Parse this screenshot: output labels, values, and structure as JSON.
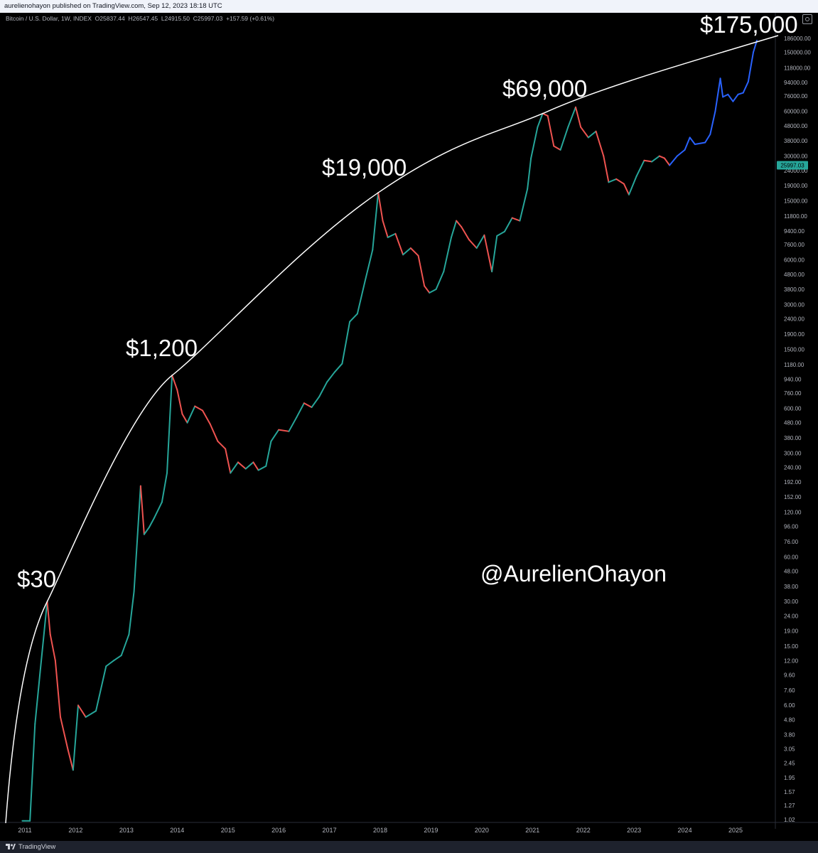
{
  "header": {
    "publish_line": "aurelienohayon published on TradingView.com, Sep 12, 2023 18:18 UTC"
  },
  "legend": {
    "symbol": "Bitcoin / U.S. Dollar, 1W, INDEX",
    "o_label": "O",
    "o_value": "25837.44",
    "h_label": "H",
    "h_value": "26547.45",
    "l_label": "L",
    "l_value": "24915.50",
    "c_label": "C",
    "c_value": "25997.03",
    "change": "+157.59 (+0.61%)"
  },
  "watermark": "@AurelienOhayon",
  "footer": {
    "brand": "TradingView"
  },
  "colors": {
    "up": "#26a69a",
    "down": "#ef5350",
    "projection": "#2962ff",
    "arc": "#ffffff",
    "price_tag": "#26a69a"
  },
  "chart_data": {
    "type": "line",
    "scale": "log",
    "title": "",
    "ylabel": "",
    "xlabel": "",
    "ylim": [
      0.96,
      265000
    ],
    "grid": false,
    "x_ticks": [
      "2011",
      "2012",
      "2013",
      "2014",
      "2015",
      "2016",
      "2017",
      "2018",
      "2019",
      "2020",
      "2021",
      "2022",
      "2023",
      "2024",
      "2025"
    ],
    "y_ticks": [
      "186000.00",
      "150000.00",
      "118000.00",
      "94000.00",
      "76000.00",
      "60000.00",
      "48000.00",
      "38000.00",
      "30000.00",
      "24000.00",
      "19000.00",
      "15000.00",
      "11800.00",
      "9400.00",
      "7600.00",
      "6000.00",
      "4800.00",
      "3800.00",
      "3000.00",
      "2400.00",
      "1900.00",
      "1500.00",
      "1180.00",
      "940.00",
      "760.00",
      "600.00",
      "480.00",
      "380.00",
      "300.00",
      "240.00",
      "192.00",
      "152.00",
      "120.00",
      "96.00",
      "76.00",
      "60.00",
      "48.00",
      "38.00",
      "30.00",
      "24.00",
      "19.00",
      "15.00",
      "12.00",
      "9.60",
      "7.60",
      "6.00",
      "4.80",
      "3.80",
      "3.05",
      "2.45",
      "1.95",
      "1.57",
      "1.27",
      "1.02"
    ],
    "last_price": "25997.03",
    "series": [
      {
        "values": [
          [
            "2010.95",
            1.0
          ],
          [
            "2011.1",
            1.0
          ],
          [
            "2011.2",
            4.5
          ],
          [
            "2011.3",
            10
          ],
          [
            "2011.44",
            30
          ],
          [
            "2011.5",
            18
          ],
          [
            "2011.6",
            12
          ],
          [
            "2011.7",
            5
          ],
          [
            "2011.85",
            3
          ],
          [
            "2011.95",
            2.2
          ],
          [
            "2012.05",
            6
          ],
          [
            "2012.2",
            5
          ],
          [
            "2012.4",
            5.5
          ],
          [
            "2012.6",
            11
          ],
          [
            "2012.75",
            12
          ],
          [
            "2012.9",
            13
          ],
          [
            "2013.05",
            18
          ],
          [
            "2013.15",
            35
          ],
          [
            "2013.28",
            180
          ],
          [
            "2013.35",
            85
          ],
          [
            "2013.45",
            95
          ],
          [
            "2013.55",
            110
          ],
          [
            "2013.7",
            140
          ],
          [
            "2013.8",
            220
          ],
          [
            "2013.9",
            1000
          ],
          [
            "2014.0",
            800
          ],
          [
            "2014.1",
            550
          ],
          [
            "2014.2",
            480
          ],
          [
            "2014.35",
            620
          ],
          [
            "2014.5",
            580
          ],
          [
            "2014.65",
            470
          ],
          [
            "2014.8",
            360
          ],
          [
            "2014.95",
            320
          ],
          [
            "2015.05",
            220
          ],
          [
            "2015.2",
            260
          ],
          [
            "2015.35",
            235
          ],
          [
            "2015.5",
            260
          ],
          [
            "2015.6",
            230
          ],
          [
            "2015.75",
            245
          ],
          [
            "2015.85",
            360
          ],
          [
            "2016.0",
            430
          ],
          [
            "2016.2",
            420
          ],
          [
            "2016.35",
            520
          ],
          [
            "2016.5",
            650
          ],
          [
            "2016.65",
            610
          ],
          [
            "2016.8",
            720
          ],
          [
            "2016.95",
            900
          ],
          [
            "2017.1",
            1050
          ],
          [
            "2017.25",
            1200
          ],
          [
            "2017.4",
            2300
          ],
          [
            "2017.55",
            2600
          ],
          [
            "2017.7",
            4300
          ],
          [
            "2017.85",
            7000
          ],
          [
            "2017.96",
            17000
          ],
          [
            "2018.05",
            11000
          ],
          [
            "2018.15",
            8500
          ],
          [
            "2018.3",
            9000
          ],
          [
            "2018.45",
            6500
          ],
          [
            "2018.6",
            7200
          ],
          [
            "2018.75",
            6400
          ],
          [
            "2018.87",
            4000
          ],
          [
            "2018.97",
            3600
          ],
          [
            "2019.1",
            3800
          ],
          [
            "2019.25",
            5000
          ],
          [
            "2019.4",
            8500
          ],
          [
            "2019.5",
            11000
          ],
          [
            "2019.6",
            10000
          ],
          [
            "2019.75",
            8200
          ],
          [
            "2019.9",
            7200
          ],
          [
            "2020.05",
            8800
          ],
          [
            "2020.2",
            5000
          ],
          [
            "2020.3",
            8700
          ],
          [
            "2020.45",
            9300
          ],
          [
            "2020.6",
            11500
          ],
          [
            "2020.75",
            11000
          ],
          [
            "2020.9",
            18000
          ],
          [
            "2020.97",
            29000
          ],
          [
            "2021.1",
            47000
          ],
          [
            "2021.2",
            58000
          ],
          [
            "2021.3",
            56000
          ],
          [
            "2021.42",
            35000
          ],
          [
            "2021.55",
            33000
          ],
          [
            "2021.7",
            47000
          ],
          [
            "2021.85",
            64000
          ],
          [
            "2021.95",
            47000
          ],
          [
            "2022.1",
            40000
          ],
          [
            "2022.25",
            44000
          ],
          [
            "2022.4",
            30000
          ],
          [
            "2022.5",
            20000
          ],
          [
            "2022.65",
            21000
          ],
          [
            "2022.8",
            19500
          ],
          [
            "2022.9",
            16500
          ],
          [
            "2023.05",
            22000
          ],
          [
            "2023.2",
            28000
          ],
          [
            "2023.35",
            27500
          ],
          [
            "2023.5",
            30000
          ],
          [
            "2023.6",
            29000
          ],
          [
            "2023.7",
            26000
          ]
        ]
      },
      {
        "values": [
          [
            "2023.7",
            26000
          ],
          [
            "2023.85",
            30000
          ],
          [
            "2024.0",
            33000
          ],
          [
            "2024.1",
            40000
          ],
          [
            "2024.2",
            36000
          ],
          [
            "2024.4",
            37000
          ],
          [
            "2024.5",
            42000
          ],
          [
            "2024.6",
            60000
          ],
          [
            "2024.7",
            100000
          ],
          [
            "2024.75",
            75000
          ],
          [
            "2024.85",
            78000
          ],
          [
            "2024.95",
            70000
          ],
          [
            "2025.05",
            78000
          ],
          [
            "2025.15",
            80000
          ],
          [
            "2025.25",
            95000
          ],
          [
            "2025.35",
            150000
          ],
          [
            "2025.42",
            180000
          ]
        ]
      }
    ],
    "annotations": [
      "$30",
      "$1,200",
      "$19,000",
      "$69,000",
      "$175,000"
    ]
  }
}
